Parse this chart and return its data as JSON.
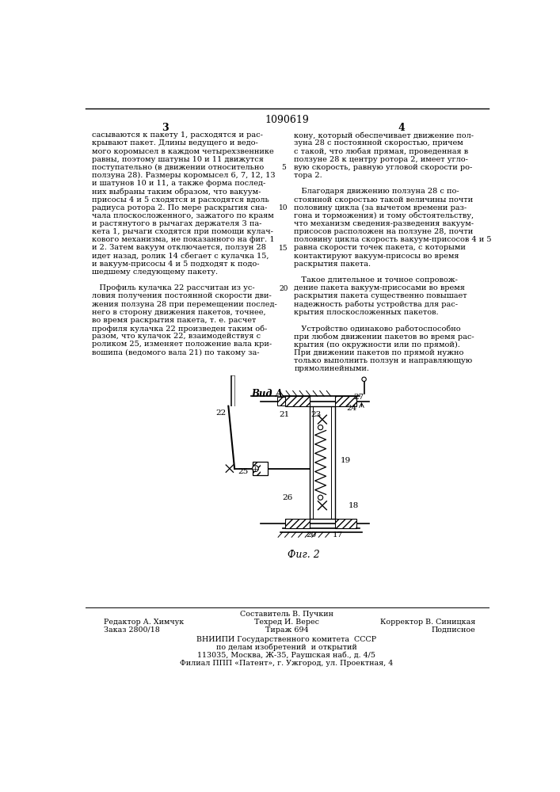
{
  "title": "1090619",
  "page_left": "3",
  "page_right": "4",
  "bg_color": "#ffffff",
  "text_color": "#000000",
  "left_column_lines": [
    "сасываются к пакету 1, расходятся и рас-",
    "крывают пакет. Длины ведущего и ведо-",
    "мого коромысел в каждом четырехзвеннике",
    "равны, поэтому шатуны 10 и 11 движутся",
    "поступательно (в движении относительно",
    "ползуна 28). Размеры коромысел 6, 7, 12, 13",
    "и шатунов 10 и 11, а также форма послед-",
    "них выбраны таким образом, что вакуум-",
    "присосы 4 и 5 сходятся и расходятся вдоль",
    "радиуса ротора 2. По мере раскрытия сна-",
    "чала плоскосложенного, зажатого по краям",
    "и растянутого в рычагах держателя 3 па-",
    "кета 1, рычаги сходятся при помощи кулач-",
    "кового механизма, не показанного на фиг. 1",
    "и 2. Затем вакуум отключается, ползун 28",
    "идет назад, ролик 14 сбегает с кулачка 15,",
    "и вакуум-присосы 4 и 5 подходят к подо-",
    "шедшему следующему пакету.",
    "",
    "   Профиль кулачка 22 рассчитан из ус-",
    "ловия получения постоянной скорости дви-",
    "жения ползуна 28 при перемещении послед-",
    "него в сторону движения пакетов, точнее,",
    "во время раскрытия пакета, т. е. расчет",
    "профиля кулачка 22 произведен таким об-",
    "разом, что кулачок 22, взаимодействуя с",
    "роликом 25, изменяет положение вала кри-",
    "вошипа (ведомого вала 21) по такому за-"
  ],
  "right_column_lines": [
    "кону, который обеспечивает движение пол-",
    "зуна 28 с постоянной скоростью, причем",
    "с такой, что любая прямая, проведенная в",
    "ползуне 28 к центру ротора 2, имеет угло-",
    "вую скорость, равную угловой скорости ро-",
    "тора 2.",
    "",
    "   Благодаря движению ползуна 28 с по-",
    "стоянной скоростью такой величины почти",
    "половину цикла (за вычетом времени раз-",
    "гона и торможения) и тому обстоятельству,",
    "что механизм сведения-разведения вакуум-",
    "присосов расположен на ползуне 28, почти",
    "половину цикла скорость вакуум-присосов 4 и 5",
    "равна скорости точек пакета, с которыми",
    "контактируют вакуум-присосы во время",
    "раскрытия пакета.",
    "",
    "   Такое длительное и точное сопровож-",
    "дение пакета вакуум-присосами во время",
    "раскрытия пакета существенно повышает",
    "надежность работы устройства для рас-",
    "крытия плоскосложенных пакетов.",
    "",
    "   Устройство одинаково работоспособно",
    "при любом движении пакетов во время рас-",
    "крытия (по окружности или по прямой).",
    "При движении пакетов по прямой нужно",
    "только выполнить ползун и направляющую",
    "прямолинейными."
  ],
  "line_numbers": [
    "5",
    "10",
    "15",
    "20"
  ],
  "line_number_rows": [
    5,
    10,
    15,
    20
  ],
  "view_label": "Вид А",
  "fig_label": "Фиг. 2",
  "footer_left1": "Редактор А. Химчук",
  "footer_left2": "Заказ 2800/18",
  "footer_center0": "Составитель В. Пучкин",
  "footer_center1": "Техред И. Верес",
  "footer_center2": "Тираж 694",
  "footer_right1": "Корректор В. Синицкая",
  "footer_right2": "Подписное",
  "footer_inst1": "ВНИИПИ Государственного комитета  СССР",
  "footer_inst2": "по делам изобретений  и открытий",
  "footer_inst3": "113035, Москва, Ж-35, Раушская наб., д. 4/5",
  "footer_inst4": "Филиал ППП «Патент», г. Ужгород, ул. Проектная, 4"
}
